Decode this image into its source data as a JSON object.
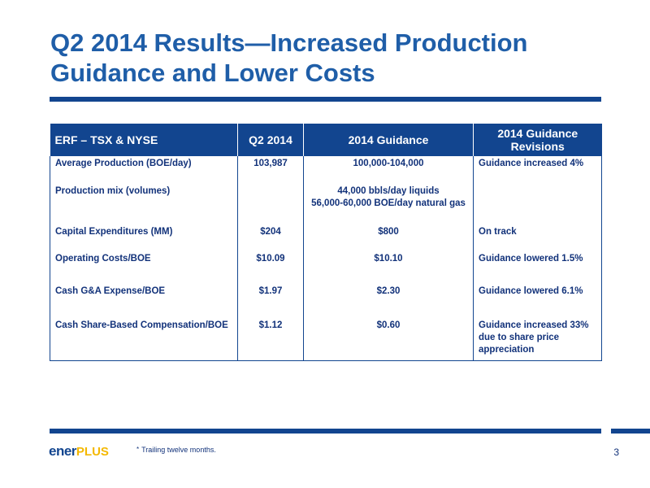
{
  "title": {
    "line1": "Q2 2014 Results—Increased Production",
    "line2": "Guidance and Lower Costs"
  },
  "table": {
    "headers": [
      "ERF – TSX & NYSE",
      "Q2 2014",
      "2014 Guidance",
      "2014 Guidance Revisions"
    ],
    "rows": [
      {
        "metric": "Average Production (BOE/day)",
        "q2": "103,987",
        "guidance": "100,000-104,000",
        "revision": "Guidance increased  4%"
      },
      {
        "metric": "Production mix (volumes)",
        "q2": "",
        "guidance_line1": "44,000 bbls/day liquids",
        "guidance_line2": "56,000-60,000 BOE/day natural gas",
        "revision": ""
      },
      {
        "metric": "Capital Expenditures (MM)",
        "q2": "$204",
        "guidance": "$800",
        "revision": "On track"
      },
      {
        "metric": "Operating Costs/BOE",
        "q2": "$10.09",
        "guidance": "$10.10",
        "revision": "Guidance  lowered 1.5%"
      },
      {
        "metric": "Cash G&A Expense/BOE",
        "q2": "$1.97",
        "guidance": "$2.30",
        "revision": "Guidance  lowered 6.1%"
      },
      {
        "metric": "Cash Share-Based Compensation/BOE",
        "q2": "$1.12",
        "guidance": "$0.60",
        "revision_line1": "Guidance increased 33%",
        "revision_line2": "due to share price",
        "revision_line3": "appreciation"
      }
    ]
  },
  "footer": {
    "logo_main": "ener",
    "logo_accent": "PLUS",
    "footnote_marker": "*",
    "footnote": "Trailing twelve months.",
    "page_number": "3"
  },
  "colors": {
    "title": "#1f5ea8",
    "accent": "#12458f",
    "logo_plus": "#f4b800"
  }
}
